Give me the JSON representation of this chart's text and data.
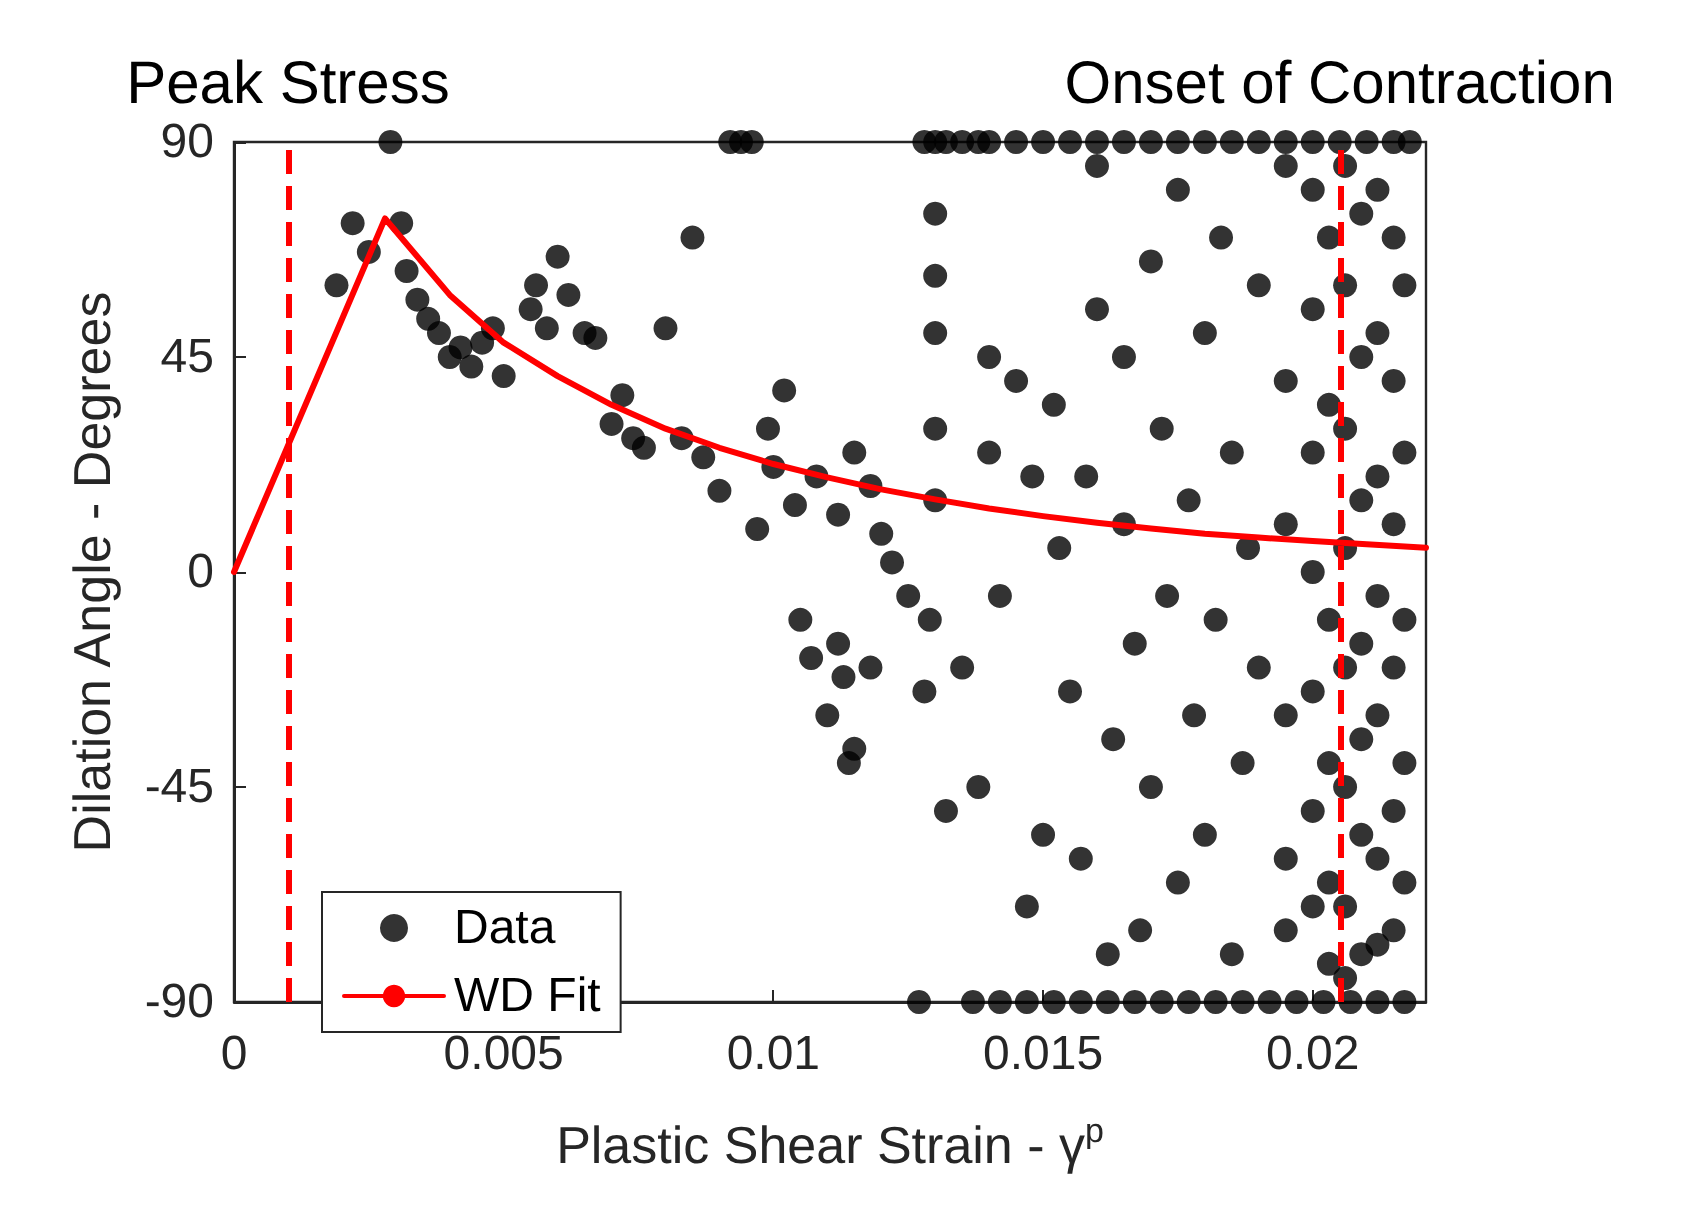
{
  "chart_data": {
    "type": "scatter",
    "xlabel": "Plastic Shear Strain - γ$^{p}$",
    "ylabel": "Dilation Angle - Degrees",
    "xlim": [
      0,
      0.0221
    ],
    "xticks": [
      0,
      0.005,
      0.01,
      0.015,
      0.02
    ],
    "ylim": [
      -90,
      90
    ],
    "yticks": [
      -90,
      -45,
      0,
      45,
      90
    ],
    "grid": false,
    "legend": "bottom left",
    "series": [
      {
        "name": "Data",
        "color": "#000000",
        "marker": "circle",
        "x": [
          0.0019,
          0.0022,
          0.0025,
          0.0029,
          0.0031,
          0.0032,
          0.0034,
          0.0036,
          0.0038,
          0.004,
          0.0042,
          0.0044,
          0.0046,
          0.0048,
          0.005,
          0.0055,
          0.0056,
          0.0058,
          0.006,
          0.0062,
          0.0065,
          0.0067,
          0.007,
          0.0072,
          0.0074,
          0.0076,
          0.008,
          0.0083,
          0.0085,
          0.0087,
          0.009,
          0.0092,
          0.0094,
          0.0096,
          0.0097,
          0.0099,
          0.01,
          0.0102,
          0.0104,
          0.0105,
          0.0128,
          0.013,
          0.0132,
          0.0135,
          0.0138,
          0.014,
          0.0145,
          0.015,
          0.0155,
          0.016,
          0.0165,
          0.017,
          0.0175,
          0.018,
          0.0185,
          0.019,
          0.0195,
          0.02,
          0.0205,
          0.021,
          0.0215,
          0.0218,
          0.0127,
          0.0137,
          0.0142,
          0.0147,
          0.0152,
          0.0157,
          0.0162,
          0.0167,
          0.0172,
          0.0177,
          0.0182,
          0.0187,
          0.0192,
          0.0197,
          0.0202,
          0.0207,
          0.0212,
          0.0217,
          0.0107,
          0.011,
          0.0113,
          0.0115,
          0.0112,
          0.0118,
          0.0114,
          0.0108,
          0.0112,
          0.0115,
          0.0118,
          0.012,
          0.0122,
          0.0125,
          0.0128,
          0.0129,
          0.013,
          0.013,
          0.013,
          0.013,
          0.013,
          0.0132,
          0.0135,
          0.0138,
          0.014,
          0.014,
          0.0142,
          0.0145,
          0.0147,
          0.0148,
          0.015,
          0.0152,
          0.0153,
          0.0155,
          0.0157,
          0.0158,
          0.016,
          0.016,
          0.0162,
          0.0163,
          0.0165,
          0.0165,
          0.0167,
          0.0168,
          0.017,
          0.017,
          0.0172,
          0.0173,
          0.0175,
          0.0175,
          0.0177,
          0.0178,
          0.018,
          0.018,
          0.0182,
          0.0183,
          0.0185,
          0.0185,
          0.0187,
          0.0188,
          0.019,
          0.019,
          0.0195,
          0.0195,
          0.0195,
          0.0195,
          0.0195,
          0.0195,
          0.02,
          0.02,
          0.02,
          0.02,
          0.02,
          0.02,
          0.02,
          0.0203,
          0.0203,
          0.0203,
          0.0203,
          0.0203,
          0.0203,
          0.0206,
          0.0206,
          0.0206,
          0.0206,
          0.0206,
          0.0206,
          0.0206,
          0.0206,
          0.0209,
          0.0209,
          0.0209,
          0.0209,
          0.0209,
          0.0209,
          0.0209,
          0.0212,
          0.0212,
          0.0212,
          0.0212,
          0.0212,
          0.0212,
          0.0212,
          0.0215,
          0.0215,
          0.0215,
          0.0215,
          0.0215,
          0.0215,
          0.0217,
          0.0217,
          0.0217,
          0.0217,
          0.0217
        ],
        "values": [
          60,
          73,
          67,
          90,
          73,
          63,
          57,
          53,
          50,
          45,
          47,
          43,
          48,
          51,
          41,
          55,
          60,
          51,
          66,
          58,
          50,
          49,
          31,
          37,
          28,
          26,
          51,
          28,
          70,
          24,
          17,
          90,
          90,
          90,
          9,
          30,
          22,
          38,
          14,
          -10,
          90,
          90,
          90,
          90,
          90,
          90,
          90,
          90,
          90,
          90,
          90,
          90,
          90,
          90,
          90,
          90,
          90,
          90,
          90,
          90,
          90,
          90,
          -90,
          -90,
          -90,
          -90,
          -90,
          -90,
          -90,
          -90,
          -90,
          -90,
          -90,
          -90,
          -90,
          -90,
          -90,
          -90,
          -90,
          -90,
          -18,
          -30,
          -22,
          -37,
          -15,
          -20,
          -40,
          20,
          12,
          25,
          18,
          8,
          2,
          -5,
          -25,
          -10,
          75,
          62,
          50,
          30,
          15,
          -50,
          -20,
          -45,
          45,
          25,
          -5,
          40,
          -70,
          20,
          -55,
          35,
          5,
          -25,
          -60,
          20,
          85,
          55,
          -80,
          -35,
          10,
          45,
          -15,
          -75,
          65,
          -45,
          30,
          -5,
          -65,
          80,
          15,
          -30,
          50,
          -55,
          -10,
          70,
          25,
          -80,
          -40,
          5,
          60,
          -20,
          85,
          40,
          10,
          -30,
          -60,
          -75,
          80,
          55,
          25,
          0,
          -25,
          -50,
          -70,
          70,
          35,
          -10,
          -40,
          -65,
          -82,
          85,
          60,
          30,
          5,
          -20,
          -45,
          -70,
          -85,
          75,
          45,
          15,
          -15,
          -35,
          -55,
          -80,
          80,
          50,
          20,
          -5,
          -30,
          -60,
          -78,
          70,
          40,
          10,
          -20,
          -50,
          -75,
          60,
          25,
          -10,
          -40,
          -65
        ]
      },
      {
        "name": "WD Fit",
        "type": "line",
        "color": "#ff0000",
        "marker": "none",
        "line_style": "solid",
        "x": [
          0,
          0.0028,
          0.004,
          0.005,
          0.006,
          0.007,
          0.008,
          0.009,
          0.01,
          0.011,
          0.012,
          0.013,
          0.014,
          0.015,
          0.016,
          0.017,
          0.018,
          0.019,
          0.02,
          0.021,
          0.0221
        ],
        "values": [
          0,
          74,
          58,
          48,
          41,
          35,
          30,
          26,
          22.6,
          19.8,
          17.3,
          15.2,
          13.3,
          11.7,
          10.3,
          9.1,
          8,
          7.2,
          6.5,
          5.8,
          5.1
        ]
      }
    ],
    "ref_lines": [
      {
        "axis": "x",
        "value": 0.001,
        "label": "Peak Stress",
        "color": "#ff0000",
        "line_style": "dashed"
      },
      {
        "axis": "x",
        "value": 0.0205,
        "label": "Onset of Contraction",
        "color": "#ff0000",
        "line_style": "dashed"
      }
    ]
  }
}
